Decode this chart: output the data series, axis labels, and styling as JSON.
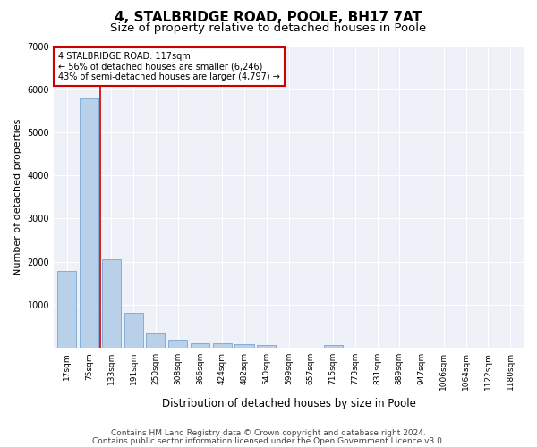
{
  "title1": "4, STALBRIDGE ROAD, POOLE, BH17 7AT",
  "title2": "Size of property relative to detached houses in Poole",
  "xlabel": "Distribution of detached houses by size in Poole",
  "ylabel": "Number of detached properties",
  "bar_labels": [
    "17sqm",
    "75sqm",
    "133sqm",
    "191sqm",
    "250sqm",
    "308sqm",
    "366sqm",
    "424sqm",
    "482sqm",
    "540sqm",
    "599sqm",
    "657sqm",
    "715sqm",
    "773sqm",
    "831sqm",
    "889sqm",
    "947sqm",
    "1006sqm",
    "1064sqm",
    "1122sqm",
    "1180sqm"
  ],
  "bar_values": [
    1780,
    5780,
    2060,
    820,
    340,
    185,
    110,
    100,
    90,
    70,
    0,
    0,
    70,
    0,
    0,
    0,
    0,
    0,
    0,
    0,
    0
  ],
  "bar_color": "#b8d0e8",
  "bar_edge_color": "#6699cc",
  "vline_x": 1.5,
  "vline_color": "#cc0000",
  "annotation_text": "4 STALBRIDGE ROAD: 117sqm\n← 56% of detached houses are smaller (6,246)\n43% of semi-detached houses are larger (4,797) →",
  "annotation_box_color": "white",
  "annotation_box_edge": "#cc0000",
  "ylim": [
    0,
    7000
  ],
  "yticks": [
    0,
    1000,
    2000,
    3000,
    4000,
    5000,
    6000,
    7000
  ],
  "footer1": "Contains HM Land Registry data © Crown copyright and database right 2024.",
  "footer2": "Contains public sector information licensed under the Open Government Licence v3.0.",
  "bg_color": "#eef2f8",
  "grid_color": "#ffffff",
  "title1_fontsize": 11,
  "title2_fontsize": 9.5,
  "xlabel_fontsize": 8.5,
  "ylabel_fontsize": 8,
  "tick_fontsize": 6.5,
  "footer_fontsize": 6.5
}
